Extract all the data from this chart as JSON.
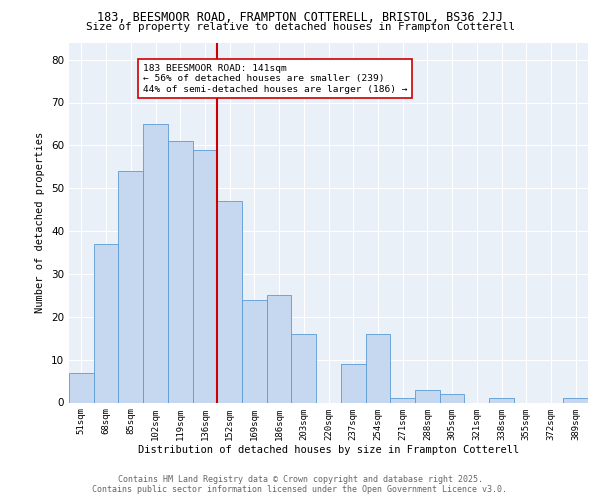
{
  "title1": "183, BEESMOOR ROAD, FRAMPTON COTTERELL, BRISTOL, BS36 2JJ",
  "title2": "Size of property relative to detached houses in Frampton Cotterell",
  "xlabel": "Distribution of detached houses by size in Frampton Cotterell",
  "ylabel": "Number of detached properties",
  "categories": [
    "51sqm",
    "68sqm",
    "85sqm",
    "102sqm",
    "119sqm",
    "136sqm",
    "152sqm",
    "169sqm",
    "186sqm",
    "203sqm",
    "220sqm",
    "237sqm",
    "254sqm",
    "271sqm",
    "288sqm",
    "305sqm",
    "321sqm",
    "338sqm",
    "355sqm",
    "372sqm",
    "389sqm"
  ],
  "values": [
    7,
    37,
    54,
    65,
    61,
    59,
    47,
    24,
    25,
    16,
    0,
    9,
    16,
    1,
    3,
    2,
    0,
    1,
    0,
    0,
    1
  ],
  "bar_color": "#c5d8f0",
  "bar_edge_color": "#5b9bd5",
  "vline_color": "#cc0000",
  "annotation_text": "183 BEESMOOR ROAD: 141sqm\n← 56% of detached houses are smaller (239)\n44% of semi-detached houses are larger (186) →",
  "ylim": [
    0,
    84
  ],
  "yticks": [
    0,
    10,
    20,
    30,
    40,
    50,
    60,
    70,
    80
  ],
  "background_color": "#eaf0f8",
  "footer": "Contains HM Land Registry data © Crown copyright and database right 2025.\nContains public sector information licensed under the Open Government Licence v3.0."
}
